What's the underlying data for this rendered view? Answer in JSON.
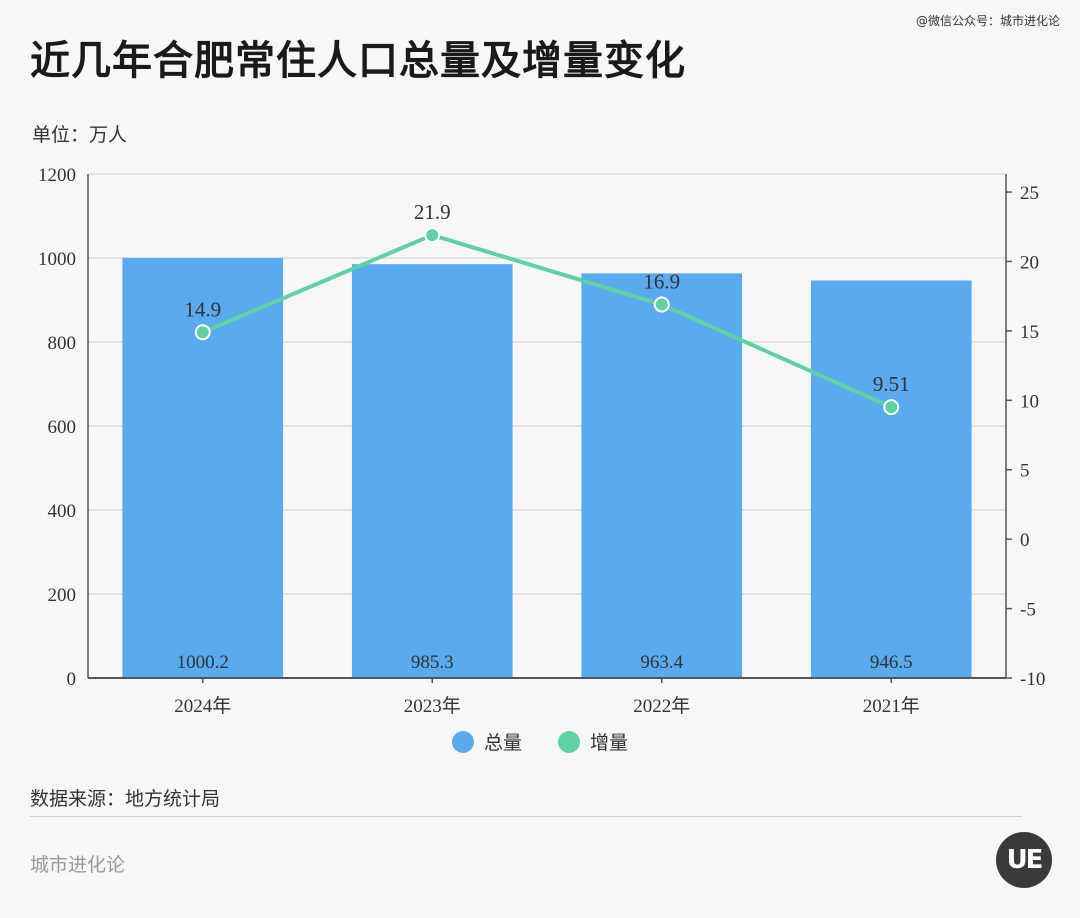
{
  "header": {
    "title": "近几年合肥常住人口总量及增量变化",
    "credit": "@微信公众号：城市进化论"
  },
  "unit_label": "单位：万人",
  "source_label": "数据来源：地方统计局",
  "footer_brand": "城市进化论",
  "logo_text": "UE",
  "colors": {
    "bar": "#59aaee",
    "line": "#5fd1a2",
    "grid": "#dcdcdc",
    "axis": "#555555"
  },
  "chart_data": {
    "type": "bar",
    "categories": [
      "2024年",
      "2023年",
      "2022年",
      "2021年"
    ],
    "series": [
      {
        "name": "总量",
        "type": "bar",
        "axis": "left",
        "values": [
          1000.2,
          985.3,
          963.4,
          946.5
        ]
      },
      {
        "name": "增量",
        "type": "line",
        "axis": "right",
        "values": [
          14.9,
          21.9,
          16.9,
          9.51
        ]
      }
    ],
    "bar_labels": [
      "1000.2",
      "985.3",
      "963.4",
      "946.5"
    ],
    "line_labels": [
      "14.9",
      "21.9",
      "16.9",
      "9.51"
    ],
    "y_left": {
      "ylim": [
        0,
        1200
      ],
      "ticks": [
        0,
        200,
        400,
        600,
        800,
        1000,
        1200
      ]
    },
    "y_right": {
      "ylim": [
        -10,
        26.3
      ],
      "ticks": [
        -10,
        -5,
        0,
        5,
        10,
        15,
        20,
        25
      ]
    },
    "grid": true,
    "legend_position": "bottom-center"
  }
}
